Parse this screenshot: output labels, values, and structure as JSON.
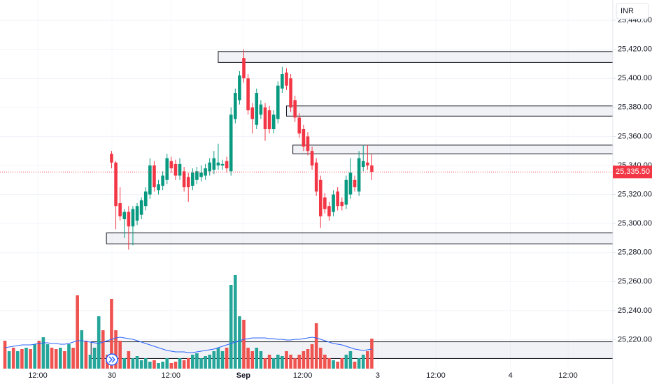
{
  "chart_data": {
    "type": "candlestick",
    "currency": "INR",
    "colors": {
      "up": "#089981",
      "down": "#f23645",
      "volume_up": "#26a69a",
      "volume_down": "#ef5350",
      "volume_ma": "#2962ff"
    },
    "xlim": [
      -1.15,
      142.5
    ],
    "xticks": [
      {
        "value": 7.7,
        "label": "12:00"
      },
      {
        "value": 25.1,
        "label": "30"
      },
      {
        "value": 38.9,
        "label": "12:00"
      },
      {
        "value": 55.9,
        "label": "Sep"
      },
      {
        "value": 69.8,
        "label": "12:00"
      },
      {
        "value": 87.4,
        "label": "3"
      },
      {
        "value": 101,
        "label": "12:00"
      },
      {
        "value": 118.5,
        "label": "4"
      },
      {
        "value": 132,
        "label": "12:00"
      }
    ],
    "ylim": [
      25200,
      25454
    ],
    "yticks": [
      {
        "value": 25440,
        "label": "25,440.00"
      },
      {
        "value": 25420,
        "label": "25,420.00"
      },
      {
        "value": 25400,
        "label": "25,400.00"
      },
      {
        "value": 25380,
        "label": "25,380.00"
      },
      {
        "value": 25360,
        "label": "25,360.00"
      },
      {
        "value": 25340,
        "label": "25,340.00"
      },
      {
        "value": 25320,
        "label": "25,320.00"
      },
      {
        "value": 25300,
        "label": "25,300.00"
      },
      {
        "value": 25280,
        "label": "25,280.00"
      },
      {
        "value": 25260,
        "label": "25,260.00"
      },
      {
        "value": 25240,
        "label": "25,240.00"
      },
      {
        "value": 25220,
        "label": "25,220.00"
      }
    ],
    "grid": true,
    "last_price": {
      "value": 25335.5,
      "label": "25,335.50"
    },
    "candles": {
      "open": [
        null,
        null,
        null,
        null,
        null,
        null,
        null,
        null,
        null,
        null,
        null,
        null,
        null,
        null,
        null,
        null,
        null,
        null,
        null,
        null,
        null,
        null,
        null,
        null,
        null,
        25348,
        25342,
        25314,
        25303,
        25308,
        25298,
        25302,
        25306,
        25312,
        25320,
        25340,
        25323,
        25326,
        25330,
        25343,
        25341,
        25333,
        25336,
        25332,
        25326,
        25330,
        25332,
        25333,
        25336,
        25337,
        25340,
        25340,
        25343,
        25336,
        25372,
        25385,
        25414,
        25400,
        25380,
        25368,
        25375,
        25380,
        25378,
        25365,
        25372,
        25393,
        25404,
        25400,
        25385,
        25373,
        25365,
        25360,
        25350,
        25342,
        25330,
        25318,
        25312,
        25308,
        25322,
        25315,
        25313,
        25320,
        25330,
        25322,
        25339,
        25342,
        25340
      ],
      "high": [
        null,
        null,
        null,
        null,
        null,
        null,
        null,
        null,
        null,
        null,
        null,
        null,
        null,
        null,
        null,
        null,
        null,
        null,
        null,
        null,
        null,
        null,
        null,
        null,
        null,
        25350,
        25343,
        25325,
        25310,
        25312,
        25312,
        25314,
        25318,
        25325,
        25345,
        25343,
        25330,
        25336,
        25348,
        25346,
        25344,
        25345,
        25339,
        25335,
        25338,
        25339,
        25340,
        25341,
        25345,
        25350,
        25355,
        25344,
        25346,
        25380,
        25393,
        25405,
        25420,
        25403,
        25383,
        25393,
        25385,
        25383,
        25381,
        25378,
        25398,
        25408,
        25407,
        25403,
        25388,
        25376,
        25368,
        25363,
        25353,
        25345,
        25333,
        25321,
        25315,
        25323,
        25325,
        25318,
        25333,
        25345,
        25333,
        25350,
        25354,
        25354,
        25348
      ],
      "low": [
        null,
        null,
        null,
        null,
        null,
        null,
        null,
        null,
        null,
        null,
        null,
        null,
        null,
        null,
        null,
        null,
        null,
        null,
        null,
        null,
        null,
        null,
        null,
        null,
        null,
        25338,
        25296,
        25302,
        25290,
        25282,
        25285,
        25299,
        25303,
        25309,
        25317,
        25322,
        25320,
        25323,
        25327,
        25335,
        25330,
        25330,
        25322,
        25315,
        25323,
        25327,
        25329,
        25330,
        25333,
        25334,
        25337,
        25337,
        25335,
        25333,
        25369,
        25382,
        25397,
        25375,
        25362,
        25365,
        25372,
        25357,
        25362,
        25362,
        25369,
        25390,
        25392,
        25377,
        25370,
        25359,
        25350,
        25347,
        25337,
        25319,
        25297,
        25307,
        25302,
        25305,
        25309,
        25309,
        25310,
        25317,
        25322,
        25319,
        25336,
        25337,
        25330
      ],
      "close": [
        null,
        null,
        null,
        null,
        null,
        null,
        null,
        null,
        null,
        null,
        null,
        null,
        null,
        null,
        null,
        null,
        null,
        null,
        null,
        null,
        null,
        null,
        null,
        null,
        null,
        25342,
        25312,
        25305,
        25308,
        25298,
        25310,
        25312,
        25316,
        25322,
        25340,
        25325,
        25327,
        25333,
        25345,
        25338,
        25333,
        25341,
        25325,
        25325,
        25335,
        25336,
        25335,
        25338,
        25342,
        25345,
        25342,
        25341,
        25338,
        25375,
        25390,
        25402,
        25400,
        25378,
        25372,
        25390,
        25382,
        25365,
        25365,
        25375,
        25395,
        25403,
        25395,
        25380,
        25373,
        25362,
        25353,
        25350,
        25340,
        25322,
        25305,
        25310,
        25305,
        25320,
        25312,
        25312,
        25330,
        25335,
        25325,
        25345,
        25343,
        25340,
        25335.5
      ]
    },
    "volume": {
      "vlim": [
        0,
        168
      ],
      "values": [
        40,
        25,
        30,
        25,
        28,
        30,
        28,
        35,
        40,
        45,
        35,
        30,
        28,
        30,
        25,
        35,
        30,
        105,
        55,
        40,
        20,
        30,
        75,
        55,
        20,
        100,
        55,
        40,
        15,
        25,
        15,
        18,
        12,
        15,
        10,
        12,
        8,
        10,
        15,
        8,
        10,
        15,
        12,
        15,
        20,
        22,
        15,
        18,
        20,
        25,
        30,
        25,
        30,
        120,
        134,
        75,
        70,
        30,
        25,
        30,
        25,
        15,
        20,
        15,
        20,
        18,
        25,
        20,
        15,
        20,
        25,
        28,
        35,
        65,
        30,
        20,
        15,
        12,
        10,
        15,
        20,
        25,
        10,
        15,
        20,
        25,
        43
      ],
      "direction": [
        "down",
        "up",
        "down",
        "up",
        "down",
        "up",
        "down",
        "up",
        "down",
        "up",
        "up",
        "down",
        "down",
        "up",
        "down",
        "up",
        "down",
        "down",
        "up",
        "down",
        "up",
        "up",
        "up",
        "down",
        "down",
        "down",
        "down",
        "down",
        "up",
        "down",
        "up",
        "up",
        "up",
        "up",
        "up",
        "down",
        "up",
        "up",
        "up",
        "down",
        "down",
        "up",
        "down",
        "down",
        "up",
        "up",
        "up",
        "up",
        "up",
        "up",
        "up",
        "up",
        "down",
        "up",
        "up",
        "up",
        "down",
        "down",
        "down",
        "up",
        "up",
        "down",
        "down",
        "up",
        "up",
        "up",
        "down",
        "down",
        "down",
        "down",
        "down",
        "down",
        "down",
        "down",
        "down",
        "down",
        "down",
        "up",
        "down",
        "down",
        "up",
        "up",
        "down",
        "up",
        "up",
        "down",
        "down"
      ],
      "ma": [
        30,
        31,
        32,
        33,
        34,
        34,
        34,
        35,
        36,
        37,
        37,
        36,
        36,
        35,
        35,
        36,
        38,
        40,
        40,
        39,
        38,
        37,
        36,
        38,
        40,
        42,
        44,
        45,
        44,
        43,
        42,
        40,
        38,
        36,
        34,
        32,
        30,
        28,
        26,
        25,
        24,
        24,
        24,
        23,
        23,
        24,
        25,
        26,
        27,
        28,
        30,
        32,
        34,
        36,
        38,
        40,
        42,
        43,
        44,
        44,
        44,
        44,
        43,
        43,
        42,
        42,
        41,
        41,
        42,
        42,
        43,
        44,
        45,
        44,
        42,
        40,
        38,
        36,
        35,
        34,
        32,
        30,
        28,
        27,
        26,
        27,
        28
      ]
    },
    "zones": [
      {
        "start": 50,
        "top": 25418.5,
        "bottom": 25411
      },
      {
        "start": 66,
        "top": 25381,
        "bottom": 25374
      },
      {
        "start": 67.5,
        "top": 25354,
        "bottom": 25348
      },
      {
        "start": 23.8,
        "top": 25293.5,
        "bottom": 25286
      },
      {
        "start": 20.2,
        "top": 25218.5,
        "bottom": 25207
      }
    ]
  }
}
